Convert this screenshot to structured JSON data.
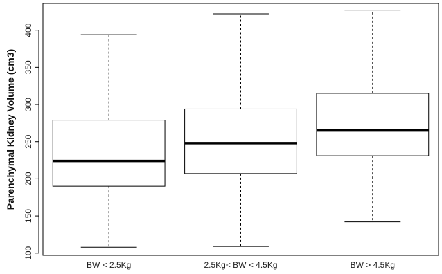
{
  "chart_data": {
    "type": "boxplot",
    "title": "",
    "xlabel": "",
    "ylabel": "Parenchymal Kidney Volume (cm3)",
    "ylim": [
      97,
      436
    ],
    "yticks": [
      100,
      150,
      200,
      250,
      300,
      350,
      400
    ],
    "categories": [
      "BW < 2.5Kg",
      "2.5Kg< BW < 4.5Kg",
      "BW > 4.5Kg"
    ],
    "boxes": [
      {
        "min": 108,
        "q1": 190,
        "median": 224,
        "q3": 279,
        "max": 394
      },
      {
        "min": 109,
        "q1": 207,
        "median": 248,
        "q3": 294,
        "max": 422
      },
      {
        "min": 142,
        "q1": 231,
        "median": 265,
        "q3": 315,
        "max": 427
      }
    ],
    "grid": false,
    "legend": "none"
  }
}
